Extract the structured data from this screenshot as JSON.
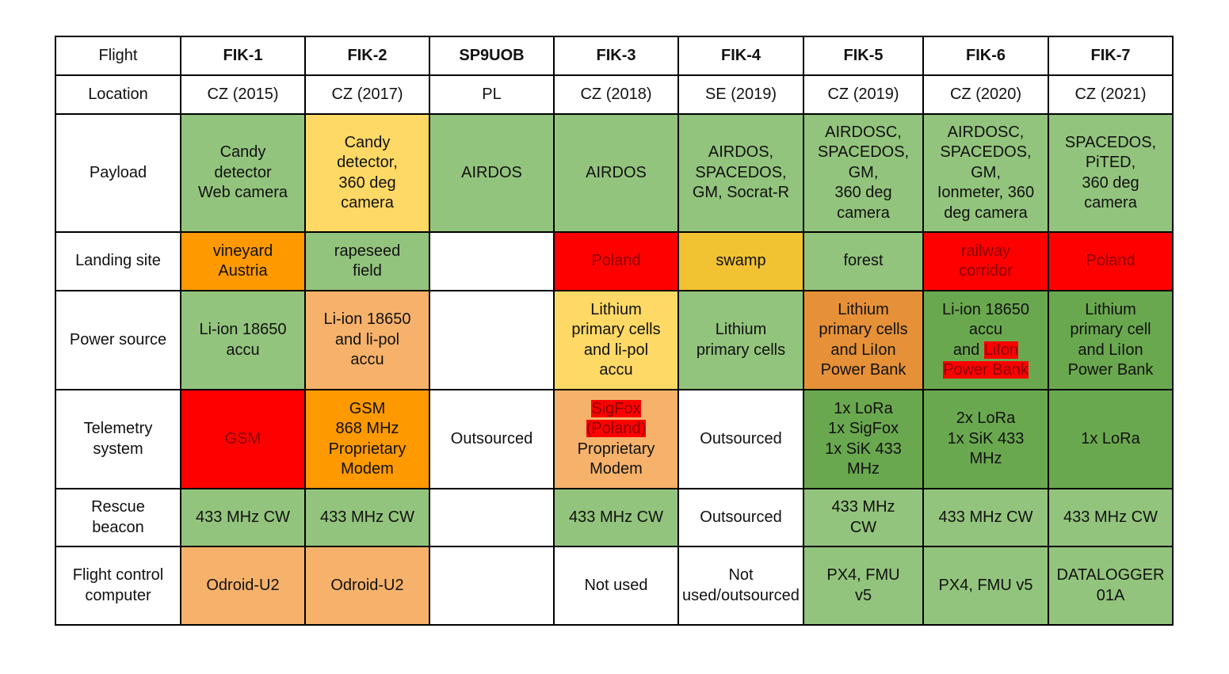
{
  "table": {
    "rows": [
      [
        "Flight",
        "FIK-1",
        "FIK-2",
        "SP9UOB",
        "FIK-3",
        "FIK-4",
        "FIK-5",
        "FIK-6",
        "FIK-7"
      ],
      [
        "Location",
        "CZ (2015)",
        "CZ (2017)",
        "PL",
        "CZ (2018)",
        "SE (2019)",
        "CZ (2019)",
        "CZ (2020)",
        "CZ (2021)"
      ],
      [
        "Payload",
        "Candy\ndetector\nWeb camera",
        "Candy\ndetector,\n360 deg\ncamera",
        "AIRDOS",
        "AIRDOS",
        "AIRDOS,\nSPACEDOS,\nGM, Socrat-R",
        "AIRDOSC,\nSPACEDOS,\nGM,\n360 deg\ncamera",
        "AIRDOSC,\nSPACEDOS,\nGM,\nIonmeter, 360\ndeg camera",
        "SPACEDOS,\nPiTED,\n360 deg\ncamera"
      ],
      [
        "Landing site",
        "vineyard\nAustria",
        "rapeseed\nfield",
        "",
        "Poland",
        "swamp",
        "forest",
        "railway\ncorridor",
        "Poland"
      ],
      [
        "Power source",
        "Li-ion 18650\naccu",
        "Li-ion 18650\nand li-pol\naccu",
        "",
        "Lithium\nprimary cells\nand li-pol\naccu",
        "Lithium\nprimary cells",
        "Lithium\nprimary cells\nand LiIon\nPower Bank",
        [
          "Li-ion 18650\naccu\nand ",
          "LiIon\nPower Bank"
        ],
        "Lithium\nprimary cell\nand LiIon\nPower Bank"
      ],
      [
        "Telemetry\nsystem",
        "GSM",
        "GSM\n868 MHz\nProprietary\nModem",
        "Outsourced",
        [
          "SigFox\n(Poland)",
          "\nProprietary\nModem"
        ],
        "Outsourced",
        "1x LoRa\n1x SigFox\n1x SiK 433\nMHz",
        "2x LoRa\n1x SiK 433\nMHz",
        "1x LoRa"
      ],
      [
        "Rescue\nbeacon",
        "433 MHz CW",
        "433 MHz CW",
        "",
        "433 MHz CW",
        "Outsourced",
        "433 MHz\nCW",
        "433 MHz CW",
        "433 MHz CW"
      ],
      [
        "Flight control\ncomputer",
        "Odroid-U2",
        "Odroid-U2",
        "",
        "Not used",
        "Not\nused/outsourced",
        "PX4, FMU\nv5",
        "PX4, FMU v5",
        "DATALOGGER01A"
      ]
    ]
  }
}
